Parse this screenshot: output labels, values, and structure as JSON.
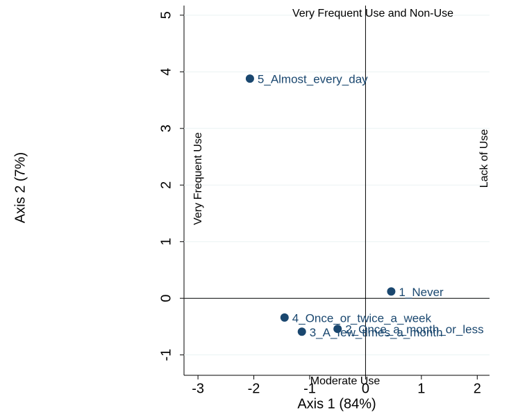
{
  "chart_data": {
    "type": "scatter",
    "xlabel": "Axis 1 (84%)",
    "ylabel": "Axis 2 (7%)",
    "annotations": [
      "Very Frequent Use and Non-Use",
      "Moderate Use",
      "Very Frequent Use",
      "Lack of Use"
    ],
    "point_labels": [
      "5_Almost_every_day",
      "1_Never",
      "4_Once_or_twice_a_week",
      "3_A_few_times_a_month",
      "2_Once_a_month_or_less"
    ],
    "x": [
      -2.07,
      0.46,
      -1.45,
      -1.14,
      -0.5
    ],
    "y": [
      3.88,
      0.12,
      -0.34,
      -0.59,
      -0.54
    ],
    "color": "#1a476f",
    "xlim": [
      -3.25,
      2.22
    ],
    "ylim": [
      -1.36,
      5.17
    ],
    "xticks": [
      -3,
      -2,
      -1,
      0,
      1,
      2
    ],
    "yticks": [
      -1,
      0,
      1,
      2,
      3,
      4,
      5
    ],
    "grid": true
  }
}
